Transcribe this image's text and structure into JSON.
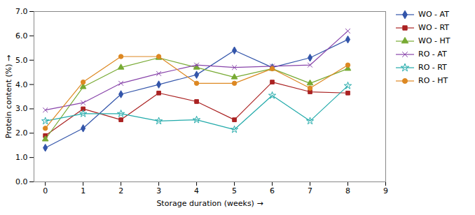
{
  "chart_data": {
    "type": "line",
    "xlabel": "Storage duration (weeks)",
    "ylabel": "Protein content (%)",
    "x": [
      0,
      1,
      2,
      3,
      4,
      5,
      6,
      7,
      8
    ],
    "series": [
      {
        "name": "WO - AT",
        "color": "#3355AA",
        "marker": "diamond",
        "values": [
          1.4,
          2.2,
          3.6,
          4.0,
          4.4,
          5.4,
          4.7,
          5.1,
          5.85
        ]
      },
      {
        "name": "WO - RT",
        "color": "#AA2222",
        "marker": "square",
        "values": [
          1.9,
          3.0,
          2.55,
          3.65,
          3.3,
          2.55,
          4.1,
          3.7,
          3.65
        ]
      },
      {
        "name": "WO - HT",
        "color": "#77AA33",
        "marker": "triangle",
        "values": [
          1.75,
          3.9,
          4.7,
          5.1,
          4.7,
          4.3,
          4.65,
          4.05,
          4.65
        ]
      },
      {
        "name": "RO - AT",
        "color": "#8844AA",
        "marker": "x",
        "values": [
          2.95,
          3.25,
          4.05,
          4.45,
          4.8,
          4.7,
          4.75,
          4.8,
          6.2
        ]
      },
      {
        "name": "RO - RT",
        "color": "#22AAAA",
        "marker": "star",
        "values": [
          2.5,
          2.8,
          2.8,
          2.5,
          2.55,
          2.15,
          3.55,
          2.5,
          3.95
        ]
      },
      {
        "name": "RO - HT",
        "color": "#DD8822",
        "marker": "circle",
        "values": [
          2.2,
          4.1,
          5.15,
          5.15,
          4.05,
          4.05,
          4.65,
          3.85,
          4.8
        ]
      }
    ],
    "xlim": [
      -0.3,
      9
    ],
    "ylim": [
      0,
      7
    ],
    "xticks": [
      0,
      1,
      2,
      3,
      4,
      5,
      6,
      7,
      8,
      9
    ],
    "yticks": [
      0,
      1,
      2,
      3,
      4,
      5,
      6,
      7
    ],
    "grid": false,
    "legend": "right"
  }
}
